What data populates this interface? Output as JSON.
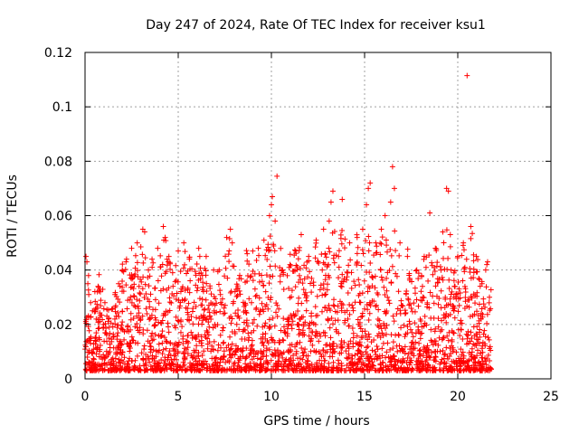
{
  "chart_data": {
    "type": "scatter",
    "title": "Day 247 of 2024, Rate Of TEC Index for receiver ksu1",
    "xlabel": "GPS time / hours",
    "ylabel": "ROTI / TECUs",
    "xlim": [
      0,
      25
    ],
    "ylim": [
      0,
      0.12
    ],
    "xticks": [
      0,
      5,
      10,
      15,
      20,
      25
    ],
    "xtick_labels": [
      "0",
      "5",
      "10",
      "15",
      "20",
      "25"
    ],
    "yticks": [
      0,
      0.02,
      0.04,
      0.06,
      0.08,
      0.1,
      0.12
    ],
    "ytick_labels": [
      "0",
      "0.02",
      "0.04",
      "0.06",
      "0.08",
      "0.1",
      "0.12"
    ],
    "grid": true,
    "marker": "plus",
    "color": "#ff0000",
    "series": [
      {
        "points": [
          [
            0.05,
            0.045
          ],
          [
            0.1,
            0.043
          ],
          [
            0.15,
            0.035
          ],
          [
            0.2,
            0.031
          ],
          [
            0.3,
            0.028
          ],
          [
            0.4,
            0.025
          ],
          [
            0.6,
            0.022
          ],
          [
            0.7,
            0.034
          ],
          [
            0.8,
            0.033
          ],
          [
            1.0,
            0.02
          ],
          [
            1.3,
            0.019
          ],
          [
            1.6,
            0.022
          ],
          [
            1.8,
            0.035
          ],
          [
            2.0,
            0.04
          ],
          [
            2.2,
            0.043
          ],
          [
            2.5,
            0.048
          ],
          [
            2.8,
            0.05
          ],
          [
            3.1,
            0.055
          ],
          [
            3.2,
            0.054
          ],
          [
            3.4,
            0.04
          ],
          [
            3.6,
            0.041
          ],
          [
            3.9,
            0.048
          ],
          [
            4.2,
            0.056
          ],
          [
            4.3,
            0.052
          ],
          [
            4.5,
            0.045
          ],
          [
            4.7,
            0.039
          ],
          [
            5.0,
            0.047
          ],
          [
            5.3,
            0.05
          ],
          [
            5.6,
            0.044
          ],
          [
            6.1,
            0.048
          ],
          [
            6.5,
            0.045
          ],
          [
            6.9,
            0.04
          ],
          [
            7.2,
            0.04
          ],
          [
            7.6,
            0.052
          ],
          [
            7.8,
            0.055
          ],
          [
            7.9,
            0.05
          ],
          [
            8.3,
            0.038
          ],
          [
            8.7,
            0.046
          ],
          [
            9.0,
            0.047
          ],
          [
            9.3,
            0.048
          ],
          [
            9.6,
            0.051
          ],
          [
            9.9,
            0.06
          ],
          [
            10.0,
            0.064
          ],
          [
            10.05,
            0.067
          ],
          [
            10.2,
            0.058
          ],
          [
            10.3,
            0.0745
          ],
          [
            10.6,
            0.04
          ],
          [
            11.0,
            0.042
          ],
          [
            11.3,
            0.047
          ],
          [
            11.6,
            0.053
          ],
          [
            12.0,
            0.045
          ],
          [
            12.4,
            0.051
          ],
          [
            12.8,
            0.055
          ],
          [
            13.1,
            0.058
          ],
          [
            13.2,
            0.065
          ],
          [
            13.3,
            0.069
          ],
          [
            13.6,
            0.045
          ],
          [
            13.8,
            0.066
          ],
          [
            14.2,
            0.05
          ],
          [
            14.6,
            0.052
          ],
          [
            14.9,
            0.055
          ],
          [
            15.1,
            0.064
          ],
          [
            15.2,
            0.07
          ],
          [
            15.3,
            0.072
          ],
          [
            15.6,
            0.05
          ],
          [
            15.9,
            0.055
          ],
          [
            16.1,
            0.06
          ],
          [
            16.4,
            0.065
          ],
          [
            16.5,
            0.078
          ],
          [
            16.6,
            0.07
          ],
          [
            16.9,
            0.05
          ],
          [
            17.3,
            0.045
          ],
          [
            17.8,
            0.04
          ],
          [
            18.2,
            0.045
          ],
          [
            18.5,
            0.061
          ],
          [
            18.8,
            0.048
          ],
          [
            19.2,
            0.054
          ],
          [
            19.4,
            0.07
          ],
          [
            19.5,
            0.069
          ],
          [
            19.6,
            0.053
          ],
          [
            20.0,
            0.045
          ],
          [
            20.3,
            0.05
          ],
          [
            20.5,
            0.1115
          ],
          [
            20.7,
            0.056
          ],
          [
            21.0,
            0.045
          ],
          [
            21.3,
            0.035
          ],
          [
            21.5,
            0.04
          ],
          [
            21.6,
            0.043
          ],
          [
            21.7,
            0.03
          ]
        ]
      }
    ]
  }
}
